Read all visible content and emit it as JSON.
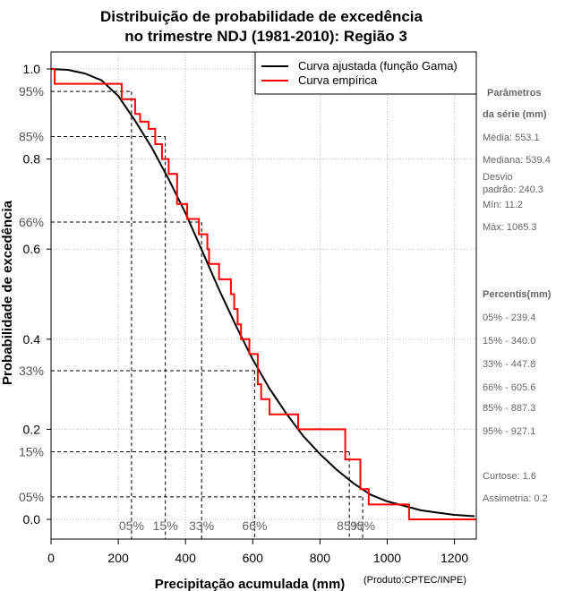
{
  "chart_data": {
    "type": "line",
    "title": "Distribuição de probabilidade de excedência",
    "subtitle": "no trimestre NDJ (1981-2010): Região 3",
    "xlabel": "Precipitação acumulada (mm)",
    "ylabel": "Probabilidade de excedência",
    "xlim": [
      0,
      1265
    ],
    "ylim": [
      -0.06,
      1.03
    ],
    "x_ticks": [
      0,
      200,
      400,
      600,
      800,
      1000,
      1200
    ],
    "y_ticks": [
      0.0,
      0.2,
      0.4,
      0.6,
      0.8,
      1.0
    ],
    "y_tick_labels": [
      "0.0",
      "0.2",
      "0.4",
      "0.6",
      "0.8",
      "1.0"
    ],
    "grid": true,
    "legend_position": "top-right",
    "credit": "(Produto:CPTEC/INPE)",
    "series": [
      {
        "name": "Curva ajustada (função Gama)",
        "color": "#000000",
        "x": [
          0,
          50,
          100,
          150,
          200,
          250,
          300,
          350,
          400,
          450,
          500,
          550,
          600,
          650,
          700,
          750,
          800,
          850,
          900,
          950,
          1000,
          1050,
          1100,
          1150,
          1200,
          1260
        ],
        "y": [
          1.0,
          0.998,
          0.99,
          0.975,
          0.94,
          0.885,
          0.825,
          0.755,
          0.68,
          0.595,
          0.51,
          0.43,
          0.355,
          0.29,
          0.235,
          0.185,
          0.145,
          0.11,
          0.08,
          0.055,
          0.04,
          0.03,
          0.02,
          0.015,
          0.01,
          0.007
        ]
      },
      {
        "name": "Curva empírica",
        "color": "#ff0000",
        "x": [
          0,
          11,
          11,
          210,
          210,
          250,
          250,
          265,
          265,
          290,
          290,
          310,
          310,
          330,
          330,
          350,
          350,
          375,
          375,
          405,
          405,
          440,
          440,
          465,
          465,
          470,
          470,
          500,
          500,
          535,
          535,
          545,
          545,
          555,
          555,
          565,
          565,
          590,
          590,
          615,
          615,
          625,
          625,
          650,
          650,
          735,
          735,
          760,
          760,
          875,
          875,
          920,
          920,
          945,
          945,
          1065,
          1065,
          1265
        ],
        "y": [
          1.0,
          1.0,
          0.967,
          0.967,
          0.933,
          0.933,
          0.9,
          0.9,
          0.883,
          0.883,
          0.867,
          0.867,
          0.833,
          0.833,
          0.8,
          0.8,
          0.767,
          0.767,
          0.7,
          0.7,
          0.667,
          0.667,
          0.633,
          0.633,
          0.6,
          0.6,
          0.567,
          0.567,
          0.533,
          0.533,
          0.5,
          0.5,
          0.467,
          0.467,
          0.433,
          0.433,
          0.4,
          0.4,
          0.367,
          0.367,
          0.3,
          0.3,
          0.267,
          0.267,
          0.233,
          0.233,
          0.2,
          0.2,
          0.2,
          0.2,
          0.133,
          0.133,
          0.067,
          0.067,
          0.033,
          0.033,
          0.0,
          0.0
        ]
      }
    ],
    "percentile_lines": [
      {
        "label": "95%",
        "prob": 0.95,
        "x_mm": 239.4,
        "bottom_label": "05%"
      },
      {
        "label": "85%",
        "prob": 0.85,
        "x_mm": 340.0,
        "bottom_label": "15%"
      },
      {
        "label": "66%",
        "prob": 0.66,
        "x_mm": 447.8,
        "bottom_label": "33%"
      },
      {
        "label": "33%",
        "prob": 0.33,
        "x_mm": 605.6,
        "bottom_label": "66%"
      },
      {
        "label": "15%",
        "prob": 0.15,
        "x_mm": 887.3,
        "bottom_label": "85%"
      },
      {
        "label": "05%",
        "prob": 0.05,
        "x_mm": 927.1,
        "bottom_label": "95%"
      }
    ]
  },
  "sidebar": {
    "params_head_1": "Parâmetros",
    "params_head_2": "da série (mm)",
    "media": "Média: 553.1",
    "mediana": "Mediana: 539.4",
    "desvio_1": "Desvio",
    "desvio_2": "padrão: 240.3",
    "min": "Mín: 11.2",
    "max": "Máx: 1065.3",
    "pct_head": "Percentis(mm)",
    "percentis": [
      "05% - 239.4",
      "15% - 340.0",
      "33% - 447.8",
      "66% - 605.6",
      "85% - 887.3",
      "95% - 927.1"
    ],
    "curtose": "Curtose: 1.6",
    "assimetria": "Assimetria: 0.2"
  }
}
